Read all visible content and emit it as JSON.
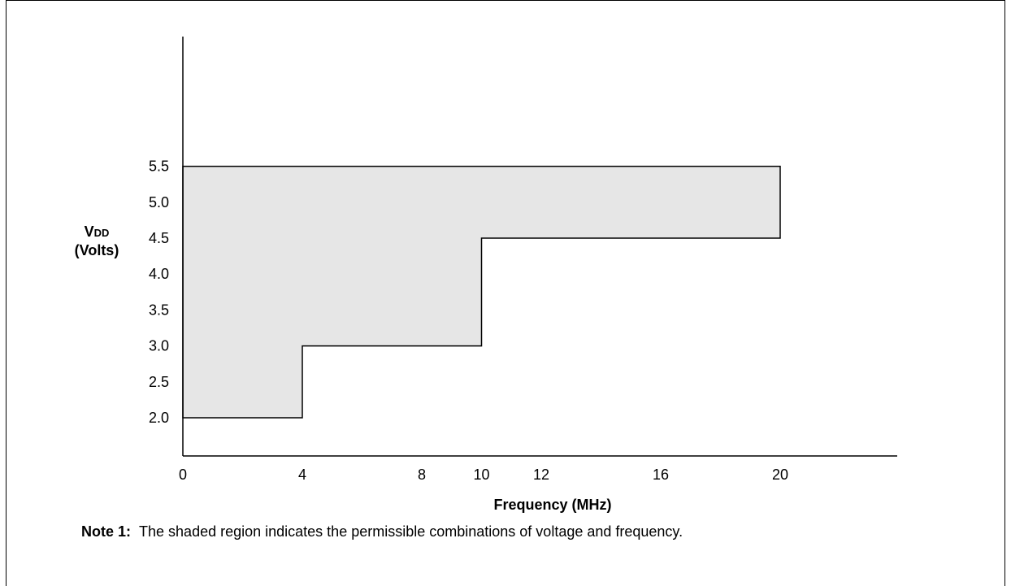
{
  "chart_data": {
    "type": "area",
    "xlabel": "Frequency (MHz)",
    "ylabel_main": "V",
    "ylabel_sub": "DD",
    "ylabel_unit": "(Volts)",
    "x_ticks": [
      0,
      4,
      8,
      10,
      12,
      16,
      20
    ],
    "y_ticks": [
      "2.0",
      "2.5",
      "3.0",
      "3.5",
      "4.0",
      "4.5",
      "5.0",
      "5.5"
    ],
    "xlim": [
      0,
      24
    ],
    "ylim": [
      1.62,
      5.7
    ],
    "region": {
      "description_label": "shaded region",
      "points": [
        [
          0,
          2.0
        ],
        [
          4,
          2.0
        ],
        [
          4,
          3.0
        ],
        [
          10,
          3.0
        ],
        [
          10,
          4.5
        ],
        [
          20,
          4.5
        ],
        [
          20,
          5.5
        ],
        [
          0,
          5.5
        ]
      ]
    },
    "fill_color": "#e6e6e6",
    "grid": false
  },
  "note": {
    "prefix": "Note 1:",
    "text": "The shaded region indicates the permissible combinations of voltage and frequency."
  }
}
